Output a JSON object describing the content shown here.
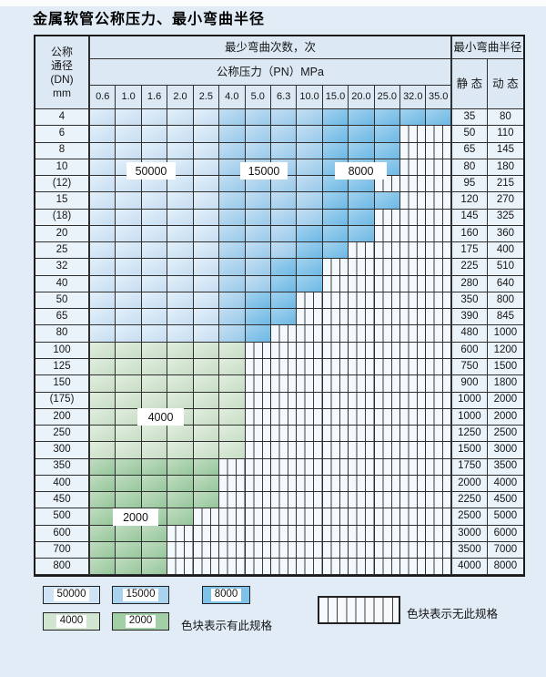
{
  "title": "金属软管公称压力、最小弯曲半径",
  "colors": {
    "blue_50000": "#d0e4f4",
    "blue_15000": "#a9d2ee",
    "blue_8000": "#7fc2e9",
    "green_4000": "#d3e6d2",
    "green_2000": "#a3cfa6",
    "no_spec_cell": "#f4f9fd",
    "grid_line": "#2f2f2f",
    "page_bg": "#e1ecf7"
  },
  "table": {
    "header": {
      "dn_lines": [
        "公称",
        "通径",
        "(DN)",
        "mm"
      ],
      "bend_times": "最少弯曲次数，次",
      "pressure": "公称压力（PN）MPa",
      "radius": "最小弯曲半径",
      "static_label": "静 态",
      "dynamic_label": "动 态",
      "pressures": [
        "0.6",
        "1.0",
        "1.6",
        "2.0",
        "2.5",
        "4.0",
        "5.0",
        "6.3",
        "10.0",
        "15.0",
        "20.0",
        "25.0",
        "32.0",
        "35.0"
      ]
    },
    "cell_code_meaning": {
      "A": "50000次 区域",
      "B": "15000次 区域",
      "C": "8000次 区域",
      "D": "4000次 区域",
      "E": "2000次 区域",
      "N": "无此规格"
    },
    "rows": [
      {
        "dn": "4",
        "cells": "AAAAABBBBCCCCC",
        "st": "35",
        "dy": "80"
      },
      {
        "dn": "6",
        "cells": "AAAAABBBBCCCNN",
        "st": "50",
        "dy": "110"
      },
      {
        "dn": "8",
        "cells": "AAAAABBBBCCCNN",
        "st": "65",
        "dy": "145"
      },
      {
        "dn": "10",
        "cells": "AAAAABBBBCCCNN",
        "st": "80",
        "dy": "180"
      },
      {
        "dn": "(12)",
        "cells": "AAAAABBBBCCNNN",
        "st": "95",
        "dy": "215"
      },
      {
        "dn": "15",
        "cells": "AAAAABBBBCCCNN",
        "st": "120",
        "dy": "270"
      },
      {
        "dn": "(18)",
        "cells": "AAAAABBBBCCNNN",
        "st": "145",
        "dy": "325"
      },
      {
        "dn": "20",
        "cells": "AAAAABBBCCCNNN",
        "st": "160",
        "dy": "360"
      },
      {
        "dn": "25",
        "cells": "AAAAABBBCCNNNN",
        "st": "175",
        "dy": "400"
      },
      {
        "dn": "32",
        "cells": "AAAAABBCCNNNNN",
        "st": "225",
        "dy": "510"
      },
      {
        "dn": "40",
        "cells": "AAAAABBCCNNNNN",
        "st": "280",
        "dy": "640"
      },
      {
        "dn": "50",
        "cells": "AAAAABCCNNNNNN",
        "st": "350",
        "dy": "800"
      },
      {
        "dn": "65",
        "cells": "AAAAABCCNNNNNN",
        "st": "390",
        "dy": "845"
      },
      {
        "dn": "80",
        "cells": "AAAAABCNNNNNNN",
        "st": "480",
        "dy": "1000"
      },
      {
        "dn": "100",
        "cells": "DDDDDDNNNNNNNN",
        "st": "600",
        "dy": "1200"
      },
      {
        "dn": "125",
        "cells": "DDDDDDNNNNNNNN",
        "st": "750",
        "dy": "1500"
      },
      {
        "dn": "150",
        "cells": "DDDDDDNNNNNNNN",
        "st": "900",
        "dy": "1800"
      },
      {
        "dn": "(175)",
        "cells": "DDDDDDNNNNNNNN",
        "st": "1000",
        "dy": "2000"
      },
      {
        "dn": "200",
        "cells": "DDDDDDNNNNNNNN",
        "st": "1000",
        "dy": "2000"
      },
      {
        "dn": "250",
        "cells": "DDDDDDNNNNNNNN",
        "st": "1250",
        "dy": "2500"
      },
      {
        "dn": "300",
        "cells": "DDDDDDNNNNNNNN",
        "st": "1500",
        "dy": "3000"
      },
      {
        "dn": "350",
        "cells": "EEEEENNNNNNNNN",
        "st": "1750",
        "dy": "3500"
      },
      {
        "dn": "400",
        "cells": "EEEEENNNNNNNNN",
        "st": "2000",
        "dy": "4000"
      },
      {
        "dn": "450",
        "cells": "EEEEENNNNNNNNN",
        "st": "2250",
        "dy": "4500"
      },
      {
        "dn": "500",
        "cells": "EEEENNNNNNNNNN",
        "st": "2500",
        "dy": "5000"
      },
      {
        "dn": "600",
        "cells": "EEENNNNNNNNNNN",
        "st": "3000",
        "dy": "6000"
      },
      {
        "dn": "700",
        "cells": "EEENNNNNNNNNNN",
        "st": "3500",
        "dy": "7000"
      },
      {
        "dn": "800",
        "cells": "EEENNNNNNNNNNN",
        "st": "4000",
        "dy": "8000"
      }
    ]
  },
  "overlays": [
    {
      "text": "50000"
    },
    {
      "text": "15000"
    },
    {
      "text": "8000"
    },
    {
      "text": "4000"
    },
    {
      "text": "2000"
    }
  ],
  "legend": {
    "items": [
      {
        "label": "50000",
        "key": "A"
      },
      {
        "label": "15000",
        "key": "B"
      },
      {
        "label": "8000",
        "key": "C"
      },
      {
        "label": "4000",
        "key": "D"
      },
      {
        "label": "2000",
        "key": "E"
      }
    ],
    "has_spec_text": "色块表示有此规格",
    "no_spec_text": "色块表示无此规格"
  }
}
